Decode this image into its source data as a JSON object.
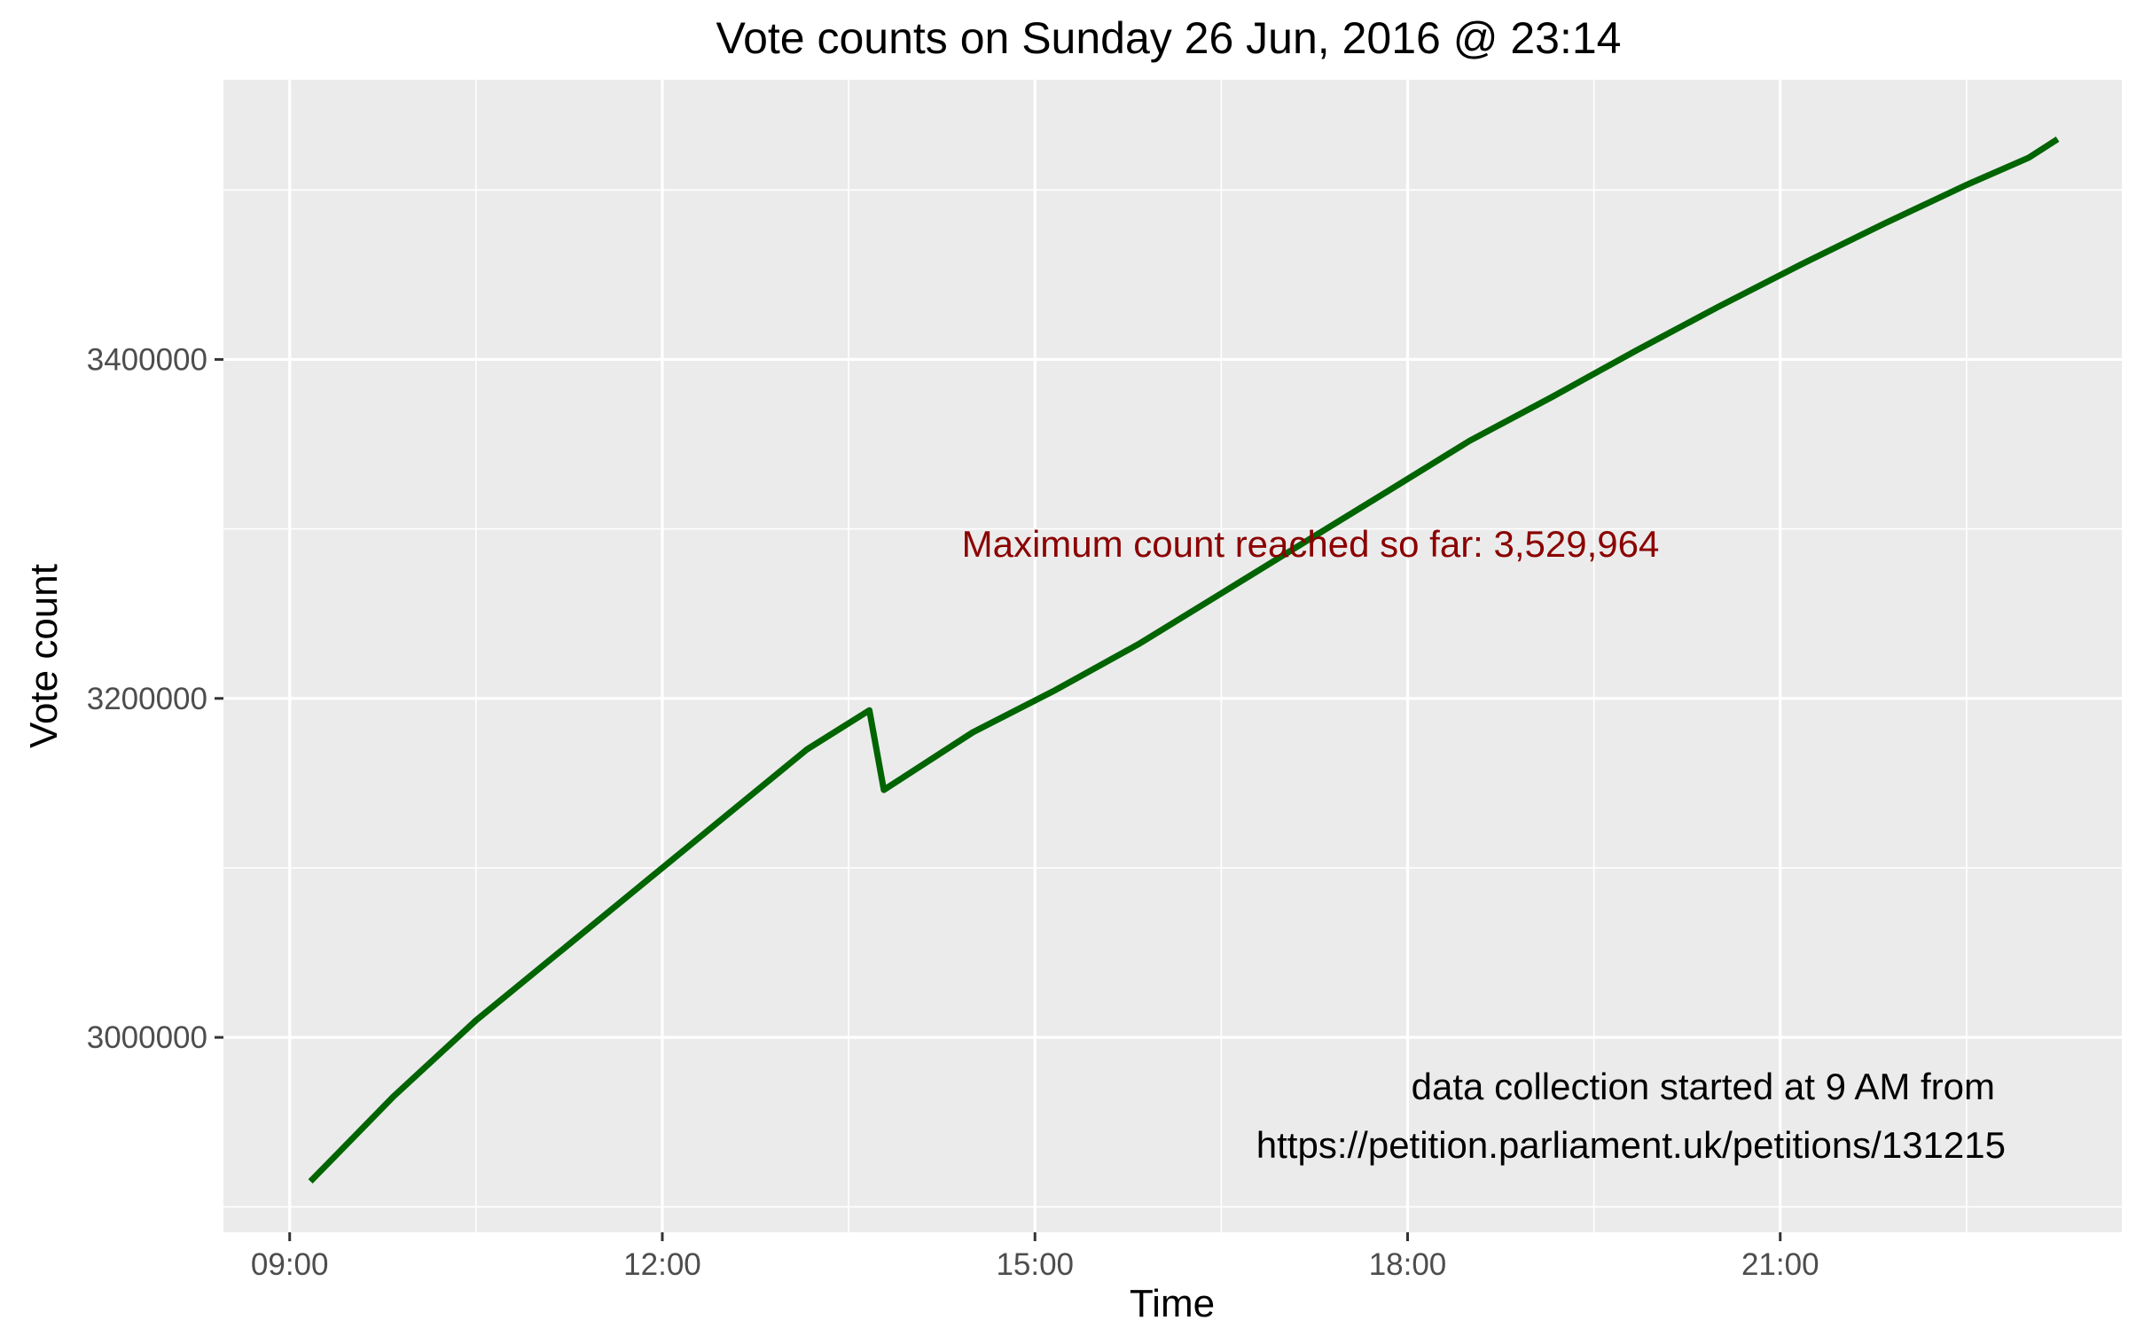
{
  "chart_data": {
    "type": "line",
    "title": "Vote counts on Sunday 26 Jun, 2016 @ 23:14",
    "xlabel": "Time",
    "ylabel": "Vote count",
    "x_ticks": [
      "09:00",
      "12:00",
      "15:00",
      "18:00",
      "21:00"
    ],
    "y_ticks": [
      "3000000",
      "3200000",
      "3400000"
    ],
    "xlim": [
      "08:28",
      "23:45"
    ],
    "ylim": [
      2885000,
      3565000
    ],
    "grid": true,
    "legend": "none",
    "line_color": "#006400",
    "series": [
      {
        "x": [
          "09:10",
          "09:50",
          "10:30",
          "11:10",
          "11:50",
          "12:30",
          "13:10",
          "13:40",
          "13:47",
          "14:30",
          "15:10",
          "15:50",
          "16:30",
          "17:10",
          "17:50",
          "18:30",
          "19:10",
          "19:50",
          "20:30",
          "21:10",
          "21:50",
          "22:30",
          "23:00",
          "23:14"
        ],
        "y": [
          2915000,
          2965000,
          3010000,
          3050000,
          3090000,
          3130000,
          3170000,
          3193000,
          3146000,
          3180000,
          3205000,
          3232000,
          3262000,
          3292000,
          3322000,
          3352000,
          3378000,
          3405000,
          3431000,
          3456000,
          3480000,
          3503000,
          3519000,
          3530000
        ]
      }
    ],
    "annotations": [
      {
        "text": "Maximum count reached so far:  3,529,964",
        "color": "#8b0000"
      },
      {
        "text": "data collection started at 9 AM from"
      },
      {
        "text": "https://petition.parliament.uk/petitions/131215"
      }
    ]
  }
}
